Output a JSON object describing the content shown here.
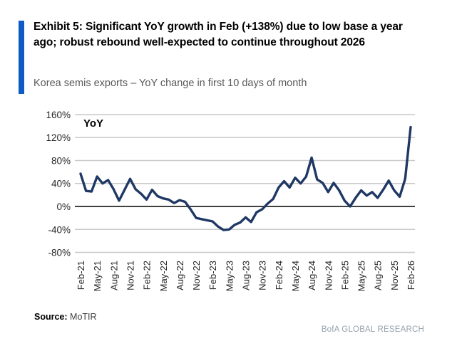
{
  "exhibit": {
    "title": "Exhibit 5: Significant YoY growth in Feb (+138%) due to low base a year ago; robust rebound well-expected to continue throughout 2026",
    "subtitle": "Korea semis exports – YoY change in first 10 days of month"
  },
  "footer": {
    "source_label": "Source:",
    "source_value": "MoTIR",
    "brand": "BofA GLOBAL RESEARCH"
  },
  "colors": {
    "accent_blue": "#0f5bc5",
    "line_navy": "#1f3864",
    "gridline": "#c9c9c9",
    "zero_line": "#404040",
    "tick_text": "#262626"
  },
  "chart_data": {
    "type": "line",
    "title": "YoY",
    "series_label": "YoY",
    "y_unit": "%",
    "ylim": [
      -80,
      160
    ],
    "y_ticks": [
      160,
      120,
      80,
      40,
      0,
      -40,
      -80
    ],
    "grid": "horizontal-gray, zero-line-dark",
    "legend": "none (single in-plot label top-left)",
    "x": [
      "Feb-21",
      "Mar-21",
      "Apr-21",
      "May-21",
      "Jun-21",
      "Jul-21",
      "Aug-21",
      "Sep-21",
      "Oct-21",
      "Nov-21",
      "Dec-21",
      "Jan-22",
      "Feb-22",
      "Mar-22",
      "Apr-22",
      "May-22",
      "Jun-22",
      "Jul-22",
      "Aug-22",
      "Sep-22",
      "Oct-22",
      "Nov-22",
      "Dec-22",
      "Jan-23",
      "Feb-23",
      "Mar-23",
      "Apr-23",
      "May-23",
      "Jun-23",
      "Jul-23",
      "Aug-23",
      "Sep-23",
      "Oct-23",
      "Nov-23",
      "Dec-23",
      "Jan-24",
      "Feb-24",
      "Mar-24",
      "Apr-24",
      "May-24",
      "Jun-24",
      "Jul-24",
      "Aug-24",
      "Sep-24",
      "Oct-24",
      "Nov-24",
      "Dec-24",
      "Jan-25",
      "Feb-25",
      "Mar-25",
      "Apr-25",
      "May-25",
      "Jun-25",
      "Jul-25",
      "Aug-25",
      "Sep-25",
      "Oct-25",
      "Nov-25",
      "Dec-25",
      "Jan-26",
      "Feb-26"
    ],
    "values": [
      57,
      27,
      26,
      52,
      40,
      46,
      30,
      10,
      29,
      48,
      30,
      22,
      12,
      29,
      18,
      14,
      12,
      6,
      11,
      8,
      -5,
      -20,
      -22,
      -24,
      -26,
      -35,
      -41,
      -40,
      -32,
      -28,
      -19,
      -27,
      -10,
      -5,
      5,
      13,
      33,
      44,
      33,
      50,
      40,
      52,
      85,
      47,
      41,
      25,
      41,
      28,
      10,
      0,
      15,
      28,
      19,
      25,
      15,
      29,
      45,
      28,
      17,
      48,
      138
    ],
    "x_tick_labels": [
      "Feb-21",
      "May-21",
      "Aug-21",
      "Nov-21",
      "Feb-22",
      "May-22",
      "Aug-22",
      "Nov-22",
      "Feb-23",
      "May-23",
      "Aug-23",
      "Nov-23",
      "Feb-24",
      "May-24",
      "Aug-24",
      "Nov-24",
      "Feb-25",
      "May-25",
      "Aug-25",
      "Nov-25",
      "Feb-26"
    ],
    "x_tick_every_n_months": 3
  }
}
